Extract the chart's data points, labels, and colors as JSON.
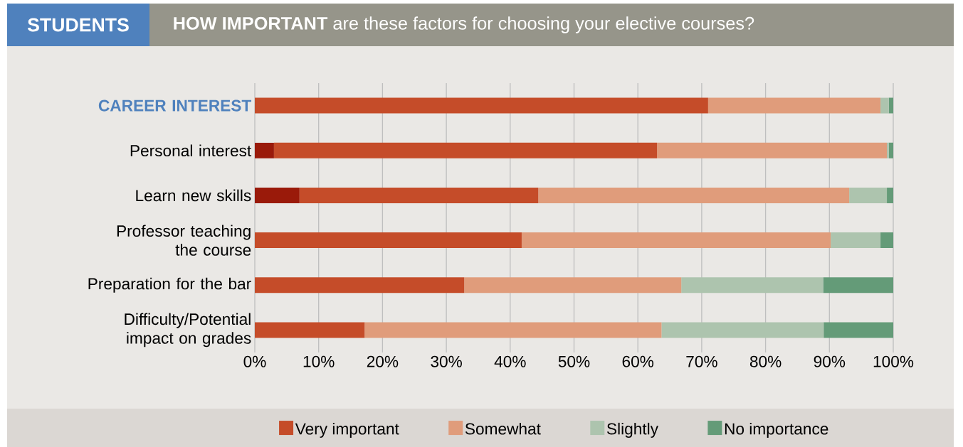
{
  "chart_data": {
    "type": "bar",
    "orientation": "horizontal",
    "stacked": true,
    "subtitle": "STUDENTS",
    "title": "**HOW IMPORTANT** are these factors for choosing your elective courses?",
    "categories": [
      "CAREER INTEREST",
      "Personal interest",
      "Learn new skills",
      "Professor teaching the course",
      "Preparation for the bar",
      "Difficulty/Potential impact on grades"
    ],
    "series": [
      {
        "color": "#9a1a0a",
        "values": [
          0,
          3,
          7,
          0,
          0,
          0
        ]
      },
      {
        "name": "Very important",
        "color": "#c54c29",
        "values": [
          71,
          60,
          37.4,
          41.8,
          32.8,
          17.2
        ]
      },
      {
        "name": "Somewhat",
        "color": "#e09c7b",
        "values": [
          27,
          36,
          48.7,
          48.4,
          34,
          46.5
        ]
      },
      {
        "name": "Slightly",
        "color": "#adc4ae",
        "values": [
          1.3,
          0.3,
          5.9,
          7.8,
          22.2,
          25.4
        ]
      },
      {
        "name": "No importance",
        "color": "#649b78",
        "values": [
          0.7,
          0.7,
          1,
          2,
          11,
          10.9
        ]
      }
    ],
    "xlim": [
      0,
      100
    ],
    "xticks": [
      {
        "value": 0,
        "label": "0%"
      },
      {
        "value": 10,
        "label": "10%"
      },
      {
        "value": 20,
        "label": "20%"
      },
      {
        "value": 30,
        "label": "30%"
      },
      {
        "value": 40,
        "label": "40%"
      },
      {
        "value": 50,
        "label": "50%"
      },
      {
        "value": 60,
        "label": "60%"
      },
      {
        "value": 70,
        "label": "70%"
      },
      {
        "value": 80,
        "label": "80%"
      },
      {
        "value": 90,
        "label": "90%"
      },
      {
        "value": 100,
        "label": "100%"
      }
    ],
    "grid": "x",
    "legend": "bottom"
  }
}
